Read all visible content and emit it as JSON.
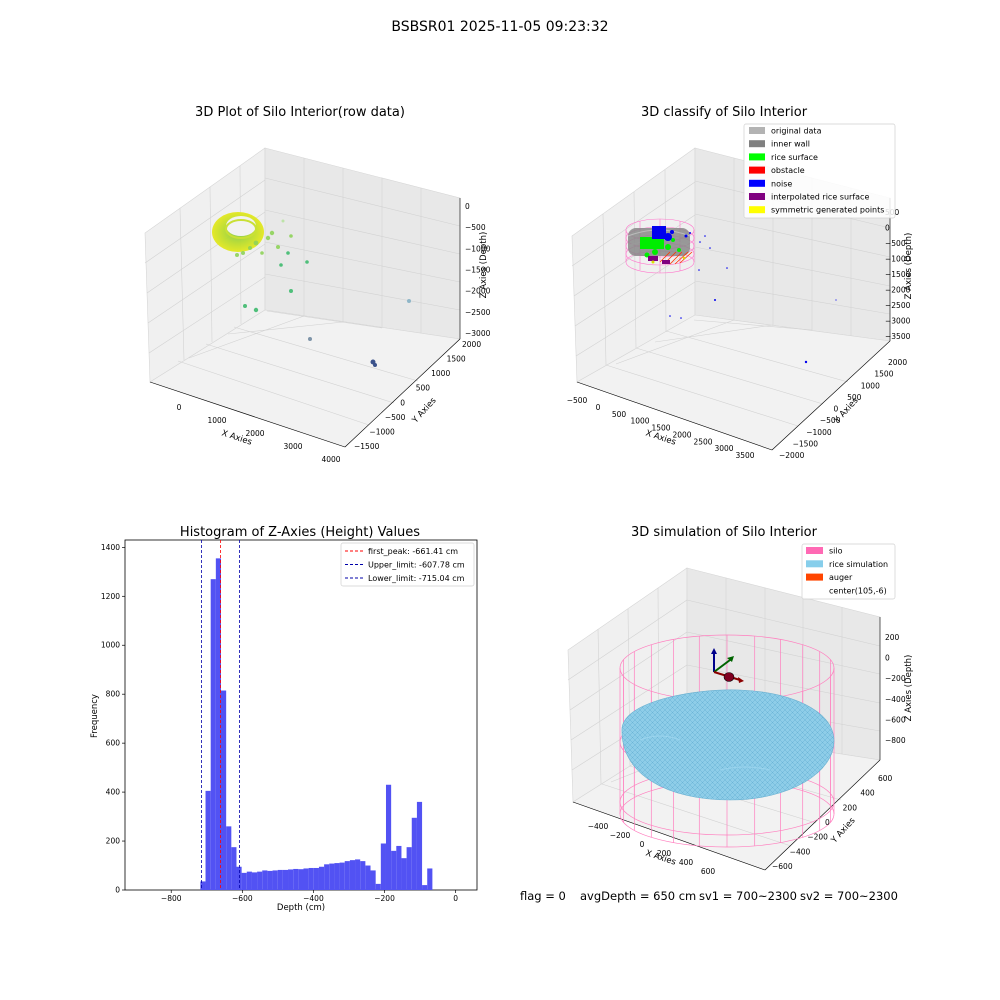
{
  "figure": {
    "suptitle": "BSBSR01 2025-11-05 09:23:32",
    "footer": {
      "flag": "flag = 0",
      "avg_depth": "avgDepth = 650 cm",
      "sv1": "sv1 = 700~2300",
      "sv2": "sv2 = 700~2300"
    }
  },
  "chart_data": [
    {
      "type": "scatter",
      "title": "3D Plot of Silo Interior(row data)",
      "xlabel": "X Axies",
      "ylabel": "Y Axies",
      "zlabel": "Z Axies (Depth)",
      "x_ticks": [
        "0",
        "1000",
        "2000",
        "3000",
        "4000"
      ],
      "y_ticks": [
        "−1500",
        "−1000",
        "−500",
        "0",
        "500",
        "1000",
        "1500",
        "2000"
      ],
      "z_ticks": [
        "0",
        "−500",
        "−1000",
        "−1500",
        "−2000",
        "−2500",
        "−3000"
      ],
      "colormap": [
        "#440154",
        "#3b528b",
        "#21918c",
        "#5ec962",
        "#fde725"
      ]
    },
    {
      "type": "scatter",
      "title": "3D classify of Silo Interior",
      "xlabel": "X Axies",
      "ylabel": "Y Axies",
      "zlabel": "Z Axies (Depth)",
      "x_ticks": [
        "−500",
        "0",
        "500",
        "1000",
        "1500",
        "2000",
        "2500",
        "3000",
        "3500"
      ],
      "y_ticks": [
        "−2000",
        "−1500",
        "−1000",
        "−500",
        "0",
        "500",
        "1000",
        "1500",
        "2000"
      ],
      "z_ticks": [
        "500",
        "0",
        "−500",
        "−1000",
        "−1500",
        "−2000",
        "−2500",
        "−3000",
        "−3500"
      ],
      "legend": [
        {
          "label": "original data",
          "color": "#b3b3b3"
        },
        {
          "label": "inner wall",
          "color": "#808080"
        },
        {
          "label": "rice surface",
          "color": "#00ff00"
        },
        {
          "label": "obstacle",
          "color": "#ff0000"
        },
        {
          "label": "noise",
          "color": "#0000ff"
        },
        {
          "label": "interpolated rice surface",
          "color": "#800080"
        },
        {
          "label": "symmetric generated points",
          "color": "#ffff00"
        }
      ]
    },
    {
      "type": "bar",
      "title": "Histogram of Z-Axies (Height) Values",
      "xlabel": "Depth (cm)",
      "ylabel": "Frequency",
      "xlim": [
        -930,
        60
      ],
      "ylim": [
        0,
        1430
      ],
      "x_ticks": [
        -800,
        -600,
        -400,
        -200,
        0
      ],
      "y_ticks": [
        0,
        200,
        400,
        600,
        800,
        1000,
        1200,
        1400
      ],
      "bar_color": "#5252f3",
      "bin_width": 14.5,
      "bins": [
        {
          "x0": -718,
          "v": 35
        },
        {
          "x0": -703.5,
          "v": 405
        },
        {
          "x0": -689,
          "v": 1270
        },
        {
          "x0": -674.5,
          "v": 1355
        },
        {
          "x0": -660,
          "v": 815
        },
        {
          "x0": -645.5,
          "v": 260
        },
        {
          "x0": -631,
          "v": 175
        },
        {
          "x0": -616.5,
          "v": 95
        },
        {
          "x0": -602,
          "v": 70
        },
        {
          "x0": -587.5,
          "v": 75
        },
        {
          "x0": -573,
          "v": 72
        },
        {
          "x0": -558.5,
          "v": 75
        },
        {
          "x0": -544,
          "v": 80
        },
        {
          "x0": -529.5,
          "v": 78
        },
        {
          "x0": -515,
          "v": 80
        },
        {
          "x0": -500.5,
          "v": 82
        },
        {
          "x0": -486,
          "v": 82
        },
        {
          "x0": -471.5,
          "v": 84
        },
        {
          "x0": -457,
          "v": 86
        },
        {
          "x0": -442.5,
          "v": 85
        },
        {
          "x0": -428,
          "v": 88
        },
        {
          "x0": -413.5,
          "v": 90
        },
        {
          "x0": -399,
          "v": 90
        },
        {
          "x0": -384.5,
          "v": 95
        },
        {
          "x0": -370,
          "v": 105
        },
        {
          "x0": -355.5,
          "v": 108
        },
        {
          "x0": -341,
          "v": 110
        },
        {
          "x0": -326.5,
          "v": 112
        },
        {
          "x0": -312,
          "v": 118
        },
        {
          "x0": -297.5,
          "v": 122
        },
        {
          "x0": -283,
          "v": 125
        },
        {
          "x0": -268.5,
          "v": 118
        },
        {
          "x0": -254,
          "v": 100
        },
        {
          "x0": -239.5,
          "v": 80
        },
        {
          "x0": -225,
          "v": 25
        },
        {
          "x0": -210.5,
          "v": 190
        },
        {
          "x0": -196,
          "v": 430
        },
        {
          "x0": -181.5,
          "v": 160
        },
        {
          "x0": -167,
          "v": 180
        },
        {
          "x0": -152.5,
          "v": 130
        },
        {
          "x0": -138,
          "v": 175
        },
        {
          "x0": -123.5,
          "v": 295
        },
        {
          "x0": -109,
          "v": 360
        },
        {
          "x0": -94.5,
          "v": 20
        },
        {
          "x0": -80,
          "v": 88
        }
      ],
      "vlines": [
        {
          "label": "first_peak: -661.41 cm",
          "x": -661.41,
          "color": "#ff0000"
        },
        {
          "label": "Upper_limit: -607.78 cm",
          "x": -607.78,
          "color": "#0000aa"
        },
        {
          "label": "Lower_limit: -715.04 cm",
          "x": -715.04,
          "color": "#0000aa"
        }
      ]
    },
    {
      "type": "scatter",
      "title": "3D simulation of Silo Interior",
      "xlabel": "X Axies",
      "ylabel": "Y Axies",
      "zlabel": "Z Axies (Depth)",
      "x_ticks": [
        "−400",
        "−200",
        "0",
        "200",
        "400",
        "600"
      ],
      "y_ticks": [
        "−600",
        "−400",
        "−200",
        "0",
        "200",
        "400",
        "600"
      ],
      "z_ticks": [
        "200",
        "0",
        "−200",
        "−400",
        "−600",
        "−800"
      ],
      "legend": [
        {
          "label": "silo",
          "color": "#ff69b4"
        },
        {
          "label": "rice simulation",
          "color": "#87ceeb"
        },
        {
          "label": "auger",
          "color": "#ff4500"
        },
        {
          "label": "center(105,-6)",
          "color": "#ffffff"
        }
      ]
    }
  ]
}
